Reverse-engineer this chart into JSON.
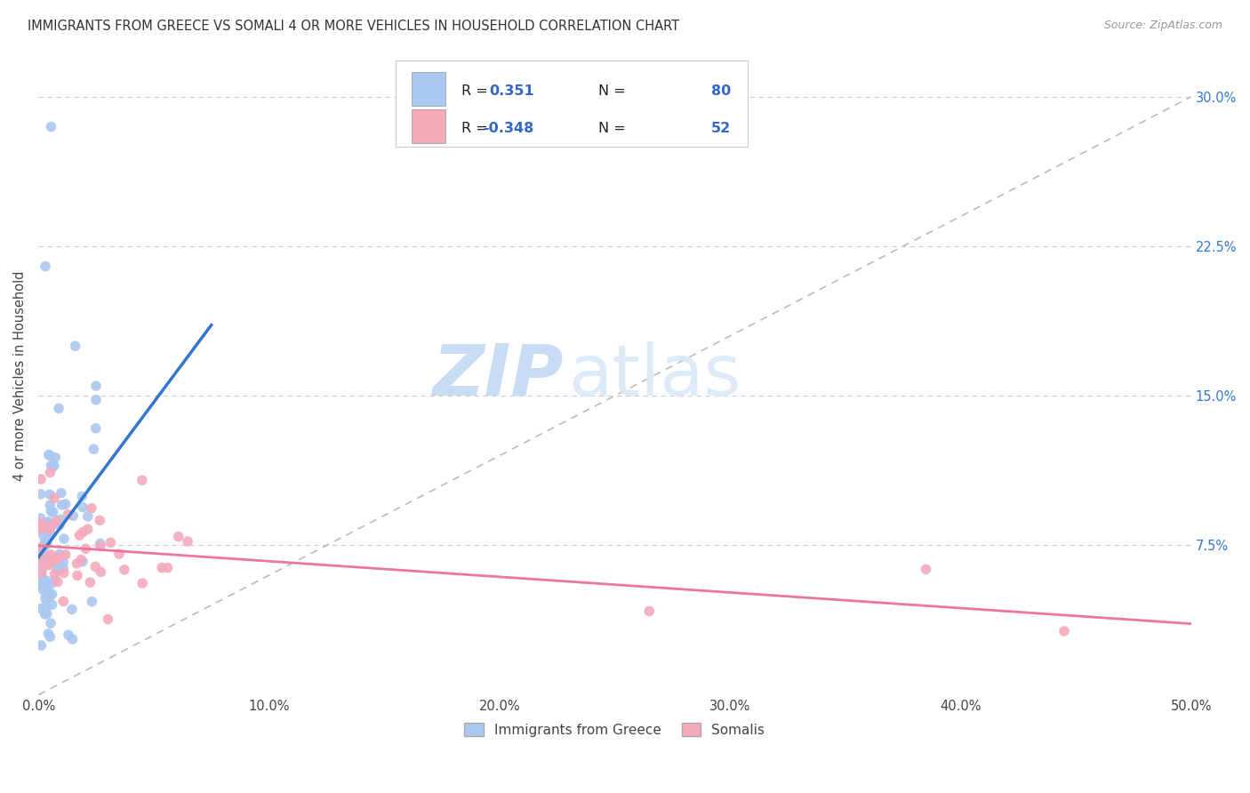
{
  "title": "IMMIGRANTS FROM GREECE VS SOMALI 4 OR MORE VEHICLES IN HOUSEHOLD CORRELATION CHART",
  "source": "Source: ZipAtlas.com",
  "ylabel": "4 or more Vehicles in Household",
  "xmin": 0.0,
  "xmax": 0.5,
  "ymin": 0.0,
  "ymax": 0.32,
  "legend_label1": "Immigrants from Greece",
  "legend_label2": "Somalis",
  "R1": 0.351,
  "N1": 80,
  "R2": -0.348,
  "N2": 52,
  "color1": "#aac8f0",
  "color2": "#f4aabb",
  "line1_color": "#3377cc",
  "line2_color": "#ee7799",
  "trendline_color": "#bbbbbb",
  "watermark_zip": "ZIP",
  "watermark_atlas": "atlas",
  "background_color": "#ffffff",
  "grid_color": "#cccccc",
  "ytick_vals": [
    0.075,
    0.15,
    0.225,
    0.3
  ],
  "ytick_labels": [
    "7.5%",
    "15.0%",
    "22.5%",
    "30.0%"
  ],
  "xtick_vals": [
    0.0,
    0.1,
    0.2,
    0.3,
    0.4,
    0.5
  ],
  "xtick_labels": [
    "0.0%",
    "10.0%",
    "20.0%",
    "30.0%",
    "40.0%",
    "50.0%"
  ]
}
